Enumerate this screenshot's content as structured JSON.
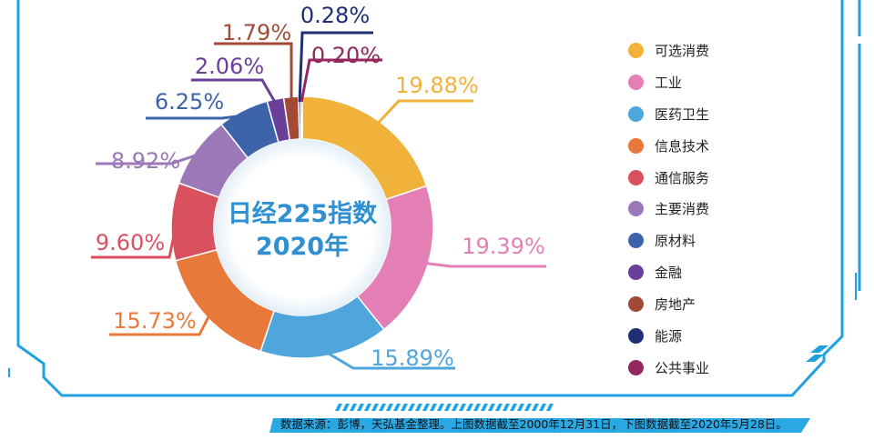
{
  "center_title": {
    "line1": "日经225指数",
    "line2": "2020年"
  },
  "source_note": "数据来源：彭博，天弘基金整理。上图数据截至2000年12月31日，下图数据截至2020年5月28日。",
  "chart_data": {
    "type": "pie",
    "title": "",
    "donut": true,
    "legend_position": "right",
    "categories": [
      "可选消费",
      "工业",
      "医药卫生",
      "信息技术",
      "通信服务",
      "主要消费",
      "原材料",
      "金融",
      "房地产",
      "能源",
      "公共事业"
    ],
    "values": [
      19.88,
      19.39,
      15.89,
      15.73,
      9.6,
      8.92,
      6.25,
      2.06,
      1.79,
      0.28,
      0.2
    ],
    "labels": [
      "19.88%",
      "19.39%",
      "15.89%",
      "15.73%",
      "9.60%",
      "8.92%",
      "6.25%",
      "2.06%",
      "1.79%",
      "0.28%",
      "0.20%"
    ],
    "colors": [
      "#f0b23a",
      "#e47fb5",
      "#4fa6dc",
      "#e8793a",
      "#d9505e",
      "#9b78b8",
      "#3d64ab",
      "#6a3f9a",
      "#a34a36",
      "#1f2f74",
      "#93285f"
    ]
  }
}
